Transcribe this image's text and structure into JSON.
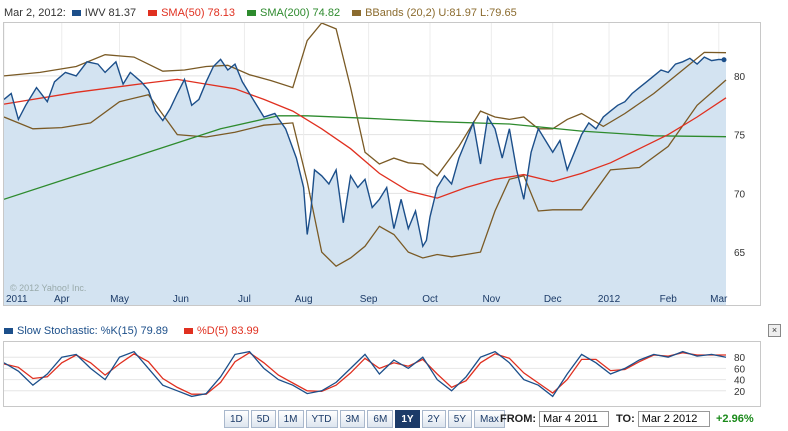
{
  "legend": {
    "date": "Mar 2, 2012:",
    "items": [
      {
        "label": "IWV",
        "value": "81.37",
        "color": "#1c4f8a"
      },
      {
        "label": "SMA(50)",
        "value": "78.13",
        "color": "#e03020"
      },
      {
        "label": "SMA(200)",
        "value": "74.82",
        "color": "#2e8b2e"
      },
      {
        "label": "BBands (20,2)",
        "value": "U:81.97 L:79.65",
        "color": "#8b6b2e"
      }
    ]
  },
  "watermark": "© 2012 Yahoo! Inc.",
  "stoch_legend": {
    "items": [
      {
        "label": "Slow Stochastic: %K(15)",
        "value": "79.89",
        "color": "#1c4f8a"
      },
      {
        "label": "%D(5)",
        "value": "83.99",
        "color": "#e03020"
      }
    ]
  },
  "close_label": "×",
  "ranges": {
    "buttons": [
      "1D",
      "5D",
      "1M",
      "YTD",
      "3M",
      "6M",
      "1Y",
      "2Y",
      "5Y",
      "Max"
    ],
    "active": "1Y"
  },
  "from_label": "FROM:",
  "from_value": "Mar 4 2011",
  "to_label": "TO:",
  "to_value": "Mar 2 2012",
  "change": "+2.96%",
  "chart_data": [
    {
      "type": "line",
      "title": "",
      "x_tick_labels": [
        "2011",
        "Apr",
        "May",
        "Jun",
        "Jul",
        "Aug",
        "Sep",
        "Oct",
        "Nov",
        "Dec",
        "2012",
        "Feb",
        "Mar"
      ],
      "x_tick_t": [
        0,
        0.08,
        0.16,
        0.245,
        0.333,
        0.415,
        0.505,
        0.59,
        0.675,
        0.76,
        0.838,
        0.92,
        0.99
      ],
      "yticks": [
        65,
        70,
        75,
        80
      ],
      "ylim": [
        60.5,
        84.5
      ],
      "grid": true,
      "colors": {
        "price": "#1c4f8a",
        "price_fill": "#d3e3f1",
        "sma50": "#e03020",
        "sma200": "#2e8b2e",
        "bband": "#7a5a25"
      },
      "series": [
        {
          "name": "IWV",
          "key": "price",
          "t": [
            0,
            0.01,
            0.02,
            0.03,
            0.045,
            0.06,
            0.07,
            0.085,
            0.1,
            0.115,
            0.13,
            0.14,
            0.155,
            0.165,
            0.175,
            0.19,
            0.2,
            0.21,
            0.22,
            0.23,
            0.24,
            0.25,
            0.26,
            0.27,
            0.28,
            0.29,
            0.3,
            0.31,
            0.32,
            0.33,
            0.345,
            0.36,
            0.375,
            0.39,
            0.405,
            0.415,
            0.42,
            0.425,
            0.43,
            0.44,
            0.45,
            0.46,
            0.47,
            0.48,
            0.49,
            0.5,
            0.51,
            0.52,
            0.53,
            0.54,
            0.55,
            0.56,
            0.57,
            0.58,
            0.585,
            0.59,
            0.6,
            0.61,
            0.62,
            0.63,
            0.64,
            0.65,
            0.66,
            0.67,
            0.68,
            0.69,
            0.7,
            0.71,
            0.72,
            0.73,
            0.74,
            0.75,
            0.76,
            0.77,
            0.78,
            0.79,
            0.8,
            0.81,
            0.82,
            0.83,
            0.84,
            0.85,
            0.86,
            0.87,
            0.88,
            0.89,
            0.9,
            0.91,
            0.92,
            0.93,
            0.94,
            0.95,
            0.96,
            0.97,
            0.98,
            0.99,
            1.0
          ],
          "values": [
            78.0,
            78.5,
            76.3,
            77.5,
            79.0,
            77.8,
            79.5,
            80.3,
            80.0,
            81.2,
            81.0,
            80.3,
            81.2,
            79.3,
            80.3,
            79.5,
            78.8,
            77.0,
            76.2,
            77.2,
            78.5,
            79.7,
            77.5,
            78.0,
            79.5,
            80.8,
            81.4,
            80.5,
            81.0,
            79.5,
            78.0,
            76.5,
            76.8,
            75.5,
            73.0,
            70.5,
            66.5,
            68.5,
            72.0,
            71.5,
            70.8,
            72.0,
            67.5,
            71.5,
            70.5,
            71.2,
            68.8,
            69.5,
            70.5,
            67.0,
            69.5,
            67.0,
            68.5,
            65.5,
            66.0,
            68.0,
            70.5,
            71.5,
            70.8,
            73.0,
            74.5,
            76.0,
            72.5,
            76.5,
            75.5,
            73.0,
            75.5,
            72.0,
            69.5,
            73.5,
            75.5,
            74.5,
            73.5,
            74.5,
            72.0,
            73.5,
            75.0,
            76.0,
            75.5,
            76.5,
            77.0,
            77.5,
            77.8,
            78.5,
            79.0,
            79.5,
            80.0,
            80.5,
            80.3,
            81.0,
            81.2,
            81.5,
            81.0,
            81.6,
            81.3,
            81.4,
            81.37
          ]
        },
        {
          "name": "SMA(50)",
          "key": "sma50",
          "t": [
            0,
            0.1,
            0.2,
            0.24,
            0.28,
            0.32,
            0.36,
            0.4,
            0.44,
            0.48,
            0.52,
            0.56,
            0.6,
            0.64,
            0.68,
            0.72,
            0.76,
            0.8,
            0.84,
            0.88,
            0.92,
            0.96,
            1.0
          ],
          "values": [
            77.6,
            78.6,
            79.4,
            79.7,
            79.3,
            78.9,
            78.0,
            77.0,
            75.5,
            73.8,
            71.7,
            70.2,
            69.6,
            70.5,
            71.2,
            71.6,
            71.0,
            71.7,
            72.6,
            73.8,
            75.0,
            76.5,
            78.13
          ]
        },
        {
          "name": "SMA(200)",
          "key": "sma200",
          "t": [
            0,
            0.1,
            0.2,
            0.3,
            0.38,
            0.42,
            0.5,
            0.6,
            0.7,
            0.8,
            0.9,
            1.0
          ],
          "values": [
            69.5,
            71.5,
            73.5,
            75.5,
            76.6,
            76.6,
            76.4,
            76.1,
            75.9,
            75.3,
            74.9,
            74.82
          ]
        },
        {
          "name": "BBands Upper",
          "key": "bbup",
          "t": [
            0,
            0.05,
            0.1,
            0.14,
            0.18,
            0.22,
            0.25,
            0.28,
            0.31,
            0.34,
            0.37,
            0.4,
            0.42,
            0.44,
            0.46,
            0.48,
            0.5,
            0.52,
            0.54,
            0.56,
            0.58,
            0.6,
            0.63,
            0.66,
            0.68,
            0.7,
            0.72,
            0.74,
            0.76,
            0.78,
            0.8,
            0.83,
            0.86,
            0.9,
            0.94,
            0.97,
            1.0
          ],
          "values": [
            80.0,
            80.3,
            80.8,
            81.8,
            81.6,
            80.4,
            80.5,
            80.8,
            80.9,
            80.1,
            79.6,
            79.0,
            83.0,
            84.5,
            84.0,
            79.0,
            73.5,
            72.5,
            73.0,
            72.6,
            72.5,
            71.5,
            74.0,
            77.0,
            76.5,
            76.3,
            76.5,
            75.5,
            75.5,
            76.3,
            76.8,
            75.7,
            76.8,
            78.5,
            80.5,
            82.0,
            81.97
          ]
        },
        {
          "name": "BBands Lower",
          "key": "bblow",
          "t": [
            0,
            0.04,
            0.08,
            0.12,
            0.16,
            0.2,
            0.24,
            0.28,
            0.32,
            0.36,
            0.4,
            0.42,
            0.44,
            0.46,
            0.48,
            0.5,
            0.52,
            0.54,
            0.56,
            0.58,
            0.6,
            0.62,
            0.64,
            0.66,
            0.68,
            0.7,
            0.72,
            0.74,
            0.76,
            0.8,
            0.84,
            0.88,
            0.92,
            0.96,
            1.0
          ],
          "values": [
            76.5,
            75.5,
            75.6,
            76.0,
            77.8,
            78.4,
            75.0,
            74.8,
            75.2,
            75.8,
            76.0,
            71.0,
            65.0,
            63.8,
            64.5,
            65.5,
            67.2,
            66.5,
            65.0,
            64.5,
            64.8,
            64.6,
            64.8,
            65.0,
            68.5,
            71.2,
            71.5,
            68.5,
            68.6,
            68.6,
            72.0,
            72.2,
            74.0,
            77.5,
            79.65
          ]
        }
      ]
    },
    {
      "type": "line",
      "title": "",
      "yticks": [
        20,
        40,
        60,
        80
      ],
      "ylim": [
        0,
        100
      ],
      "series": [
        {
          "name": "%K(15)",
          "key": "k",
          "t": [
            0,
            0.02,
            0.04,
            0.06,
            0.08,
            0.1,
            0.12,
            0.14,
            0.16,
            0.18,
            0.2,
            0.22,
            0.24,
            0.26,
            0.28,
            0.3,
            0.32,
            0.34,
            0.36,
            0.38,
            0.4,
            0.42,
            0.44,
            0.46,
            0.48,
            0.5,
            0.52,
            0.54,
            0.56,
            0.58,
            0.6,
            0.62,
            0.64,
            0.66,
            0.68,
            0.7,
            0.72,
            0.74,
            0.76,
            0.78,
            0.8,
            0.82,
            0.84,
            0.86,
            0.88,
            0.9,
            0.92,
            0.94,
            0.96,
            0.98,
            1.0
          ],
          "values": [
            70,
            55,
            30,
            50,
            80,
            85,
            60,
            40,
            80,
            90,
            60,
            30,
            20,
            10,
            15,
            45,
            85,
            90,
            60,
            40,
            30,
            15,
            20,
            35,
            60,
            85,
            50,
            75,
            60,
            80,
            40,
            20,
            45,
            80,
            90,
            70,
            40,
            30,
            10,
            50,
            85,
            70,
            50,
            60,
            75,
            85,
            80,
            90,
            82,
            85,
            79.89
          ]
        },
        {
          "name": "%D(5)",
          "key": "d",
          "t": [
            0,
            0.02,
            0.04,
            0.06,
            0.08,
            0.1,
            0.12,
            0.14,
            0.16,
            0.18,
            0.2,
            0.22,
            0.24,
            0.26,
            0.28,
            0.3,
            0.32,
            0.34,
            0.36,
            0.38,
            0.4,
            0.42,
            0.44,
            0.46,
            0.48,
            0.5,
            0.52,
            0.54,
            0.56,
            0.58,
            0.6,
            0.62,
            0.64,
            0.66,
            0.68,
            0.7,
            0.72,
            0.74,
            0.76,
            0.78,
            0.8,
            0.82,
            0.84,
            0.86,
            0.88,
            0.9,
            0.92,
            0.94,
            0.96,
            0.98,
            1.0
          ],
          "values": [
            68,
            62,
            42,
            45,
            70,
            84,
            70,
            48,
            68,
            86,
            72,
            42,
            26,
            14,
            14,
            35,
            72,
            88,
            70,
            48,
            34,
            20,
            19,
            30,
            52,
            78,
            60,
            70,
            64,
            76,
            50,
            26,
            38,
            70,
            86,
            78,
            52,
            34,
            16,
            40,
            76,
            76,
            56,
            58,
            72,
            84,
            82,
            88,
            84,
            84,
            83.99
          ]
        }
      ]
    }
  ]
}
